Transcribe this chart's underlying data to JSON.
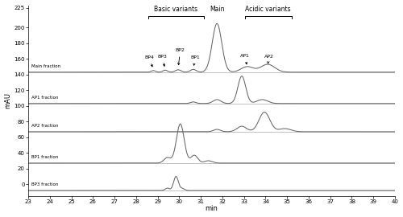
{
  "x_min": 23.0,
  "x_max": 40.0,
  "x_ticks": [
    23.0,
    24.0,
    25.0,
    26.0,
    27.0,
    28.0,
    29.0,
    30.0,
    31.0,
    32.0,
    33.0,
    34.0,
    35.0,
    36.0,
    37.0,
    38.0,
    39.0,
    40.0
  ],
  "y_min": -15,
  "y_max": 228,
  "y_ticks": [
    0,
    20,
    40,
    60,
    80,
    100,
    120,
    140,
    160,
    180,
    200,
    225
  ],
  "ylabel": "mAU",
  "xlabel": "min",
  "background_color": "#ffffff",
  "line_color": "#666666",
  "fraction_labels": [
    "Main fraction",
    "AP1 fraction",
    "AP2 fraction",
    "BP1 fraction",
    "BP3 fraction"
  ],
  "fraction_baselines": [
    143,
    103,
    67,
    27,
    -8
  ],
  "bv_x1": 28.55,
  "bv_x2": 31.15,
  "main_x": 31.75,
  "av_x1": 33.05,
  "av_x2": 35.2,
  "bracket_y": 220,
  "bracket_drop": 5,
  "label_fontsize": 5.5,
  "peak_label_fontsize": 4.5
}
